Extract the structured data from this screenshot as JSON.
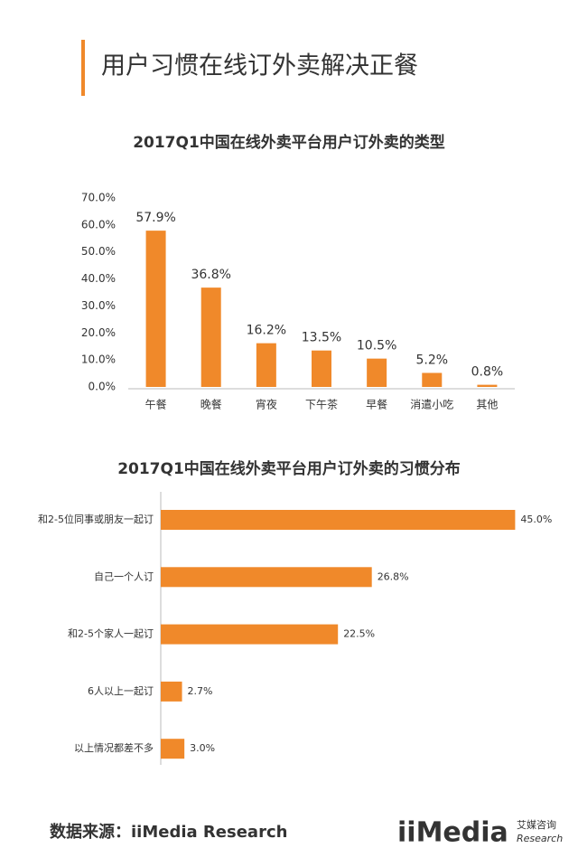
{
  "header": {
    "title": "用户习惯在线订外卖解决正餐"
  },
  "chart_data": [
    {
      "type": "bar",
      "title": "2017Q1中国在线外卖平台用户订外卖的类型",
      "categories": [
        "午餐",
        "晚餐",
        "宵夜",
        "下午茶",
        "早餐",
        "消遣小吃",
        "其他"
      ],
      "values": [
        57.9,
        36.8,
        16.2,
        13.5,
        10.5,
        5.2,
        0.8
      ],
      "value_labels": [
        "57.9%",
        "36.8%",
        "16.2%",
        "13.5%",
        "10.5%",
        "5.2%",
        "0.8%"
      ],
      "color": "#f0892a",
      "ylim": [
        0,
        70
      ],
      "yticks": [
        {
          "value": 0,
          "label": "0.0%"
        },
        {
          "value": 10,
          "label": "10.0%"
        },
        {
          "value": 20,
          "label": "20.0%"
        },
        {
          "value": 30,
          "label": "30.0%"
        },
        {
          "value": 40,
          "label": "40.0%"
        },
        {
          "value": 50,
          "label": "50.0%"
        },
        {
          "value": 60,
          "label": "60.0%"
        },
        {
          "value": 70,
          "label": "70.0%"
        }
      ]
    },
    {
      "type": "hbar",
      "title": "2017Q1中国在线外卖平台用户订外卖的习惯分布",
      "categories": [
        "和2-5位同事或朋友一起订",
        "自己一个人订",
        "和2-5个家人一起订",
        "6人以上一起订",
        "以上情况都差不多"
      ],
      "values": [
        45.0,
        26.8,
        22.5,
        2.7,
        3.0
      ],
      "value_labels": [
        "45.0%",
        "26.8%",
        "22.5%",
        "2.7%",
        "3.0%"
      ],
      "color": "#f0892a",
      "xlim": [
        0,
        50
      ]
    }
  ],
  "footer": {
    "source": "数据来源：iiMedia Research",
    "logo": "iiMedia",
    "logo_cn": "艾媒咨询",
    "logo_en": "Research"
  }
}
